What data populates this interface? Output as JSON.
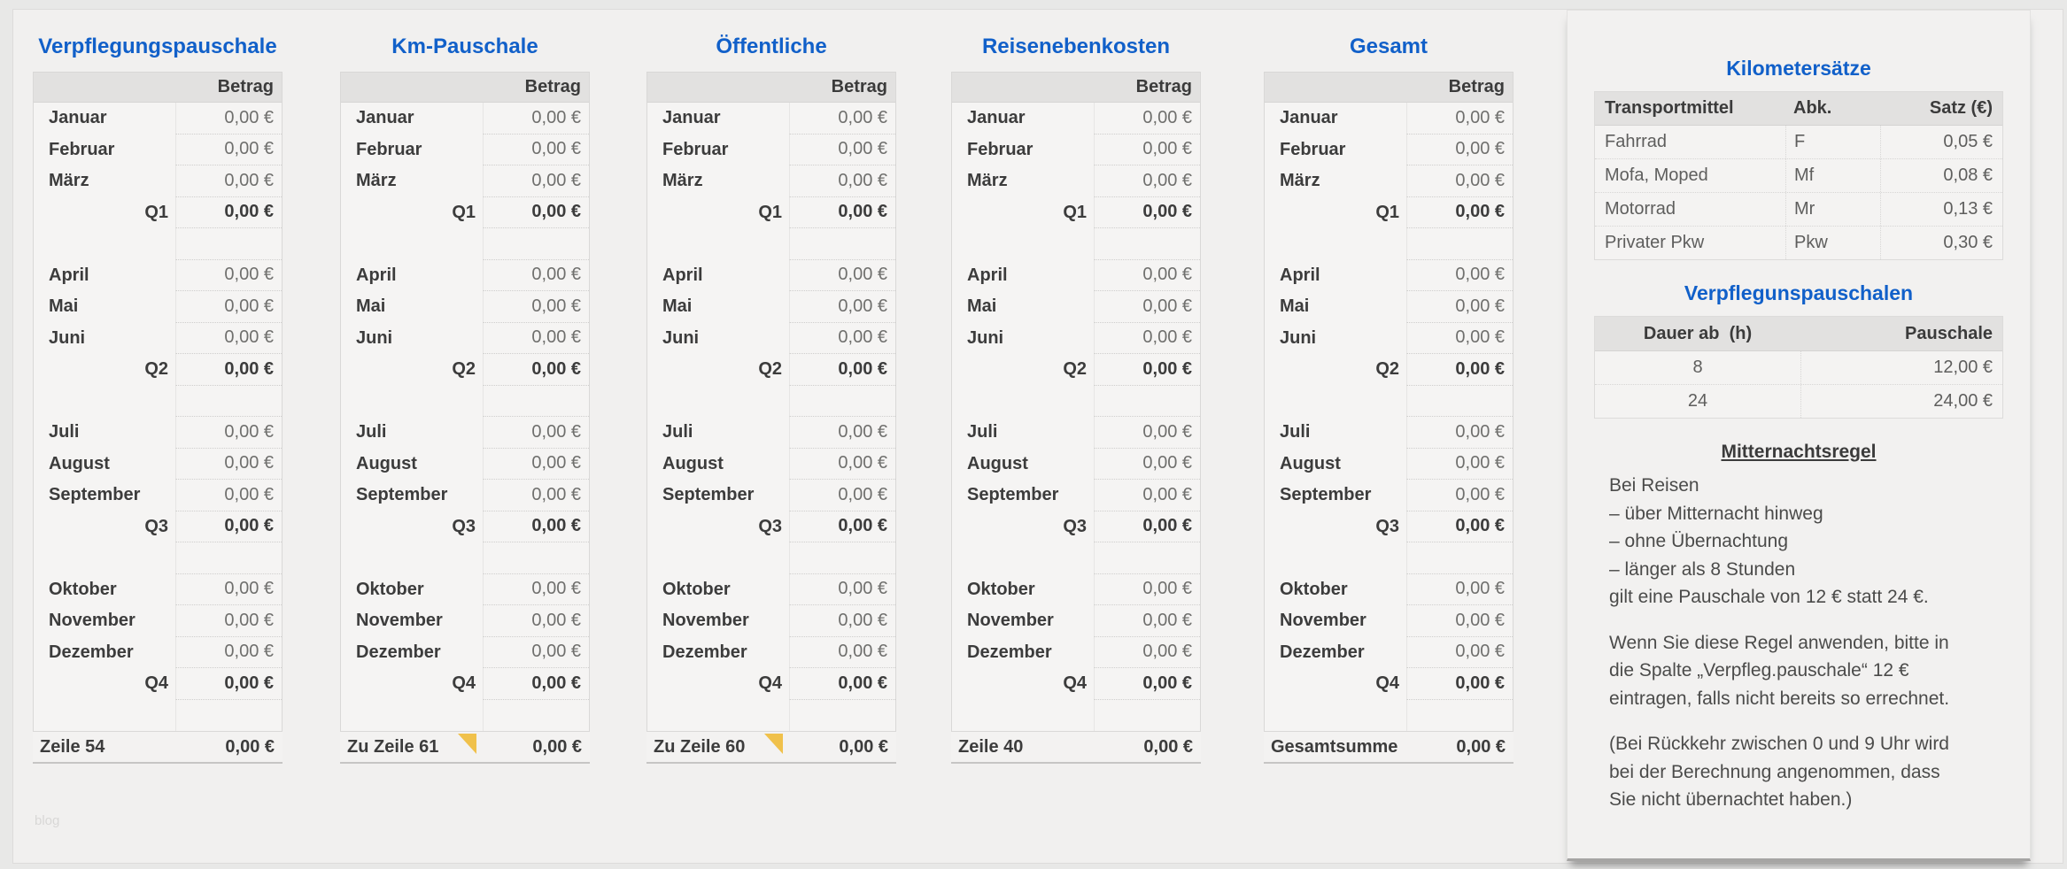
{
  "page": {
    "watermark": "blog"
  },
  "colors": {
    "accent": "#1160c9",
    "header_bg": "#e2e1e0",
    "note_marker": "#f0c14b"
  },
  "month_tables": [
    {
      "id": "verpflegungspauschale",
      "title": "Verpflegungspauschale",
      "column_header": "Betrag",
      "rows": [
        {
          "type": "month",
          "label": "Januar",
          "value": "0,00 €"
        },
        {
          "type": "month",
          "label": "Februar",
          "value": "0,00 €"
        },
        {
          "type": "month",
          "label": "März",
          "value": "0,00 €"
        },
        {
          "type": "quarter",
          "label": "Q1",
          "value": "0,00 €"
        },
        {
          "type": "spacer",
          "label": "",
          "value": ""
        },
        {
          "type": "month",
          "label": "April",
          "value": "0,00 €"
        },
        {
          "type": "month",
          "label": "Mai",
          "value": "0,00 €"
        },
        {
          "type": "month",
          "label": "Juni",
          "value": "0,00 €"
        },
        {
          "type": "quarter",
          "label": "Q2",
          "value": "0,00 €"
        },
        {
          "type": "spacer",
          "label": "",
          "value": ""
        },
        {
          "type": "month",
          "label": "Juli",
          "value": "0,00 €"
        },
        {
          "type": "month",
          "label": "August",
          "value": "0,00 €"
        },
        {
          "type": "month",
          "label": "September",
          "value": "0,00 €"
        },
        {
          "type": "quarter",
          "label": "Q3",
          "value": "0,00 €"
        },
        {
          "type": "spacer",
          "label": "",
          "value": ""
        },
        {
          "type": "month",
          "label": "Oktober",
          "value": "0,00 €"
        },
        {
          "type": "month",
          "label": "November",
          "value": "0,00 €"
        },
        {
          "type": "month",
          "label": "Dezember",
          "value": "0,00 €"
        },
        {
          "type": "quarter",
          "label": "Q4",
          "value": "0,00 €"
        },
        {
          "type": "spacer",
          "label": "",
          "value": ""
        }
      ],
      "footer": {
        "label": "Zeile 54",
        "value": "0,00 €",
        "note_marker": false
      }
    },
    {
      "id": "km-pauschale",
      "title": "Km-Pauschale",
      "column_header": "Betrag",
      "rows": [
        {
          "type": "month",
          "label": "Januar",
          "value": "0,00 €"
        },
        {
          "type": "month",
          "label": "Februar",
          "value": "0,00 €"
        },
        {
          "type": "month",
          "label": "März",
          "value": "0,00 €"
        },
        {
          "type": "quarter",
          "label": "Q1",
          "value": "0,00 €"
        },
        {
          "type": "spacer",
          "label": "",
          "value": ""
        },
        {
          "type": "month",
          "label": "April",
          "value": "0,00 €"
        },
        {
          "type": "month",
          "label": "Mai",
          "value": "0,00 €"
        },
        {
          "type": "month",
          "label": "Juni",
          "value": "0,00 €"
        },
        {
          "type": "quarter",
          "label": "Q2",
          "value": "0,00 €"
        },
        {
          "type": "spacer",
          "label": "",
          "value": ""
        },
        {
          "type": "month",
          "label": "Juli",
          "value": "0,00 €"
        },
        {
          "type": "month",
          "label": "August",
          "value": "0,00 €"
        },
        {
          "type": "month",
          "label": "September",
          "value": "0,00 €"
        },
        {
          "type": "quarter",
          "label": "Q3",
          "value": "0,00 €"
        },
        {
          "type": "spacer",
          "label": "",
          "value": ""
        },
        {
          "type": "month",
          "label": "Oktober",
          "value": "0,00 €"
        },
        {
          "type": "month",
          "label": "November",
          "value": "0,00 €"
        },
        {
          "type": "month",
          "label": "Dezember",
          "value": "0,00 €"
        },
        {
          "type": "quarter",
          "label": "Q4",
          "value": "0,00 €"
        },
        {
          "type": "spacer",
          "label": "",
          "value": ""
        }
      ],
      "footer": {
        "label": "Zu Zeile 61",
        "value": "0,00 €",
        "note_marker": true
      }
    },
    {
      "id": "oeffentliche",
      "title": "Öffentliche",
      "column_header": "Betrag",
      "rows": [
        {
          "type": "month",
          "label": "Januar",
          "value": "0,00 €"
        },
        {
          "type": "month",
          "label": "Februar",
          "value": "0,00 €"
        },
        {
          "type": "month",
          "label": "März",
          "value": "0,00 €"
        },
        {
          "type": "quarter",
          "label": "Q1",
          "value": "0,00 €"
        },
        {
          "type": "spacer",
          "label": "",
          "value": ""
        },
        {
          "type": "month",
          "label": "April",
          "value": "0,00 €"
        },
        {
          "type": "month",
          "label": "Mai",
          "value": "0,00 €"
        },
        {
          "type": "month",
          "label": "Juni",
          "value": "0,00 €"
        },
        {
          "type": "quarter",
          "label": "Q2",
          "value": "0,00 €"
        },
        {
          "type": "spacer",
          "label": "",
          "value": ""
        },
        {
          "type": "month",
          "label": "Juli",
          "value": "0,00 €"
        },
        {
          "type": "month",
          "label": "August",
          "value": "0,00 €"
        },
        {
          "type": "month",
          "label": "September",
          "value": "0,00 €"
        },
        {
          "type": "quarter",
          "label": "Q3",
          "value": "0,00 €"
        },
        {
          "type": "spacer",
          "label": "",
          "value": ""
        },
        {
          "type": "month",
          "label": "Oktober",
          "value": "0,00 €"
        },
        {
          "type": "month",
          "label": "November",
          "value": "0,00 €"
        },
        {
          "type": "month",
          "label": "Dezember",
          "value": "0,00 €"
        },
        {
          "type": "quarter",
          "label": "Q4",
          "value": "0,00 €"
        },
        {
          "type": "spacer",
          "label": "",
          "value": ""
        }
      ],
      "footer": {
        "label": "Zu Zeile 60",
        "value": "0,00 €",
        "note_marker": true
      }
    },
    {
      "id": "reisenebenkosten",
      "title": "Reisenebenkosten",
      "column_header": "Betrag",
      "rows": [
        {
          "type": "month",
          "label": "Januar",
          "value": "0,00 €"
        },
        {
          "type": "month",
          "label": "Februar",
          "value": "0,00 €"
        },
        {
          "type": "month",
          "label": "März",
          "value": "0,00 €"
        },
        {
          "type": "quarter",
          "label": "Q1",
          "value": "0,00 €"
        },
        {
          "type": "spacer",
          "label": "",
          "value": ""
        },
        {
          "type": "month",
          "label": "April",
          "value": "0,00 €"
        },
        {
          "type": "month",
          "label": "Mai",
          "value": "0,00 €"
        },
        {
          "type": "month",
          "label": "Juni",
          "value": "0,00 €"
        },
        {
          "type": "quarter",
          "label": "Q2",
          "value": "0,00 €"
        },
        {
          "type": "spacer",
          "label": "",
          "value": ""
        },
        {
          "type": "month",
          "label": "Juli",
          "value": "0,00 €"
        },
        {
          "type": "month",
          "label": "August",
          "value": "0,00 €"
        },
        {
          "type": "month",
          "label": "September",
          "value": "0,00 €"
        },
        {
          "type": "quarter",
          "label": "Q3",
          "value": "0,00 €"
        },
        {
          "type": "spacer",
          "label": "",
          "value": ""
        },
        {
          "type": "month",
          "label": "Oktober",
          "value": "0,00 €"
        },
        {
          "type": "month",
          "label": "November",
          "value": "0,00 €"
        },
        {
          "type": "month",
          "label": "Dezember",
          "value": "0,00 €"
        },
        {
          "type": "quarter",
          "label": "Q4",
          "value": "0,00 €"
        },
        {
          "type": "spacer",
          "label": "",
          "value": ""
        }
      ],
      "footer": {
        "label": "Zeile 40",
        "value": "0,00 €",
        "note_marker": false
      }
    },
    {
      "id": "gesamt",
      "title": "Gesamt",
      "column_header": "Betrag",
      "rows": [
        {
          "type": "month",
          "label": "Januar",
          "value": "0,00 €"
        },
        {
          "type": "month",
          "label": "Februar",
          "value": "0,00 €"
        },
        {
          "type": "month",
          "label": "März",
          "value": "0,00 €"
        },
        {
          "type": "quarter",
          "label": "Q1",
          "value": "0,00 €"
        },
        {
          "type": "spacer",
          "label": "",
          "value": ""
        },
        {
          "type": "month",
          "label": "April",
          "value": "0,00 €"
        },
        {
          "type": "month",
          "label": "Mai",
          "value": "0,00 €"
        },
        {
          "type": "month",
          "label": "Juni",
          "value": "0,00 €"
        },
        {
          "type": "quarter",
          "label": "Q2",
          "value": "0,00 €"
        },
        {
          "type": "spacer",
          "label": "",
          "value": ""
        },
        {
          "type": "month",
          "label": "Juli",
          "value": "0,00 €"
        },
        {
          "type": "month",
          "label": "August",
          "value": "0,00 €"
        },
        {
          "type": "month",
          "label": "September",
          "value": "0,00 €"
        },
        {
          "type": "quarter",
          "label": "Q3",
          "value": "0,00 €"
        },
        {
          "type": "spacer",
          "label": "",
          "value": ""
        },
        {
          "type": "month",
          "label": "Oktober",
          "value": "0,00 €"
        },
        {
          "type": "month",
          "label": "November",
          "value": "0,00 €"
        },
        {
          "type": "month",
          "label": "Dezember",
          "value": "0,00 €"
        },
        {
          "type": "quarter",
          "label": "Q4",
          "value": "0,00 €"
        },
        {
          "type": "spacer",
          "label": "",
          "value": ""
        }
      ],
      "footer": {
        "label": "Gesamtsumme",
        "value": "0,00 €",
        "note_marker": false
      }
    }
  ],
  "side_panel": {
    "km_rates": {
      "title": "Kilometersätze",
      "headers": [
        "Transportmittel",
        "Abk.",
        "Satz (€)"
      ],
      "rows": [
        [
          "Fahrrad",
          "F",
          "0,05 €"
        ],
        [
          "Mofa, Moped",
          "Mf",
          "0,08 €"
        ],
        [
          "Motorrad",
          "Mr",
          "0,13 €"
        ],
        [
          "Privater Pkw",
          "Pkw",
          "0,30 €"
        ]
      ]
    },
    "meal_allowances": {
      "title": "Verpflegunspauschalen",
      "headers": [
        "Dauer ab  (h)",
        "Pauschale"
      ],
      "rows": [
        [
          "8",
          "12,00 €"
        ],
        [
          "24",
          "24,00 €"
        ]
      ]
    },
    "midnight_rule": {
      "title": "Mitternachtsregel",
      "paragraphs": [
        "Bei Reisen\n– über Mitternacht hinweg\n– ohne Übernachtung\n– länger als 8 Stunden\ngilt eine Pauschale von 12 € statt 24 €.",
        "Wenn Sie diese Regel anwenden, bitte in\ndie Spalte „Verpfleg.pauschale“ 12 €\neintragen, falls nicht bereits so errechnet.",
        "(Bei Rückkehr zwischen 0 und 9 Uhr wird\nbei der Berechnung angenommen, dass\nSie nicht übernachtet haben.)"
      ]
    }
  }
}
